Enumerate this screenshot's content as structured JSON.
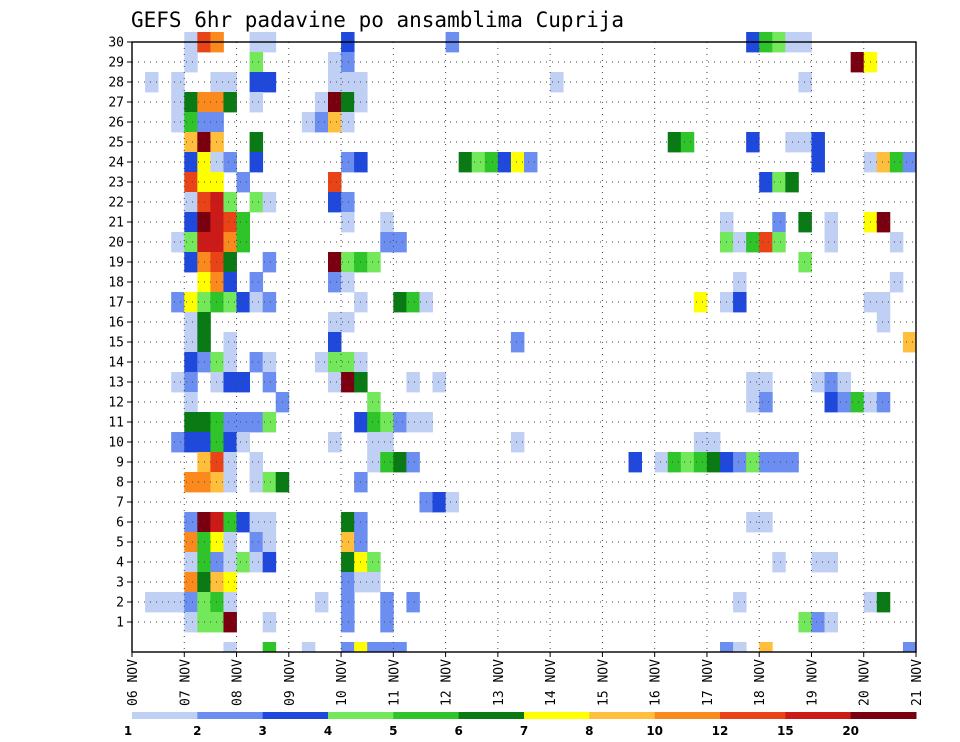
{
  "chart_data": {
    "type": "heatmap",
    "title": "GEFS 6hr padavine po ansamblima Cuprija",
    "xlabel": "",
    "ylabel": "",
    "x_tick_labels": [
      "06 NOV",
      "07 NOV",
      "08 NOV",
      "09 NOV",
      "10 NOV",
      "11 NOV",
      "12 NOV",
      "13 NOV",
      "14 NOV",
      "15 NOV",
      "16 NOV",
      "17 NOV",
      "18 NOV",
      "19 NOV",
      "20 NOV",
      "21 NOV"
    ],
    "y_tick_labels": [
      "1",
      "2",
      "3",
      "4",
      "5",
      "6",
      "7",
      "8",
      "9",
      "10",
      "11",
      "12",
      "13",
      "14",
      "15",
      "16",
      "17",
      "18",
      "19",
      "20",
      "21",
      "22",
      "23",
      "24",
      "25",
      "26",
      "27",
      "28",
      "29",
      "30"
    ],
    "x_range_steps": [
      0,
      60
    ],
    "y_range_members": [
      0,
      30
    ],
    "grid": true,
    "colorbar": {
      "tick_labels": [
        "1",
        "2",
        "3",
        "4",
        "5",
        "6",
        "7",
        "8",
        "10",
        "12",
        "15",
        "20"
      ],
      "colors": [
        "#c0d0f5",
        "#6c8ef0",
        "#1f48dc",
        "#72e85a",
        "#2ec42a",
        "#0a7a14",
        "#ffff00",
        "#ffbe3c",
        "#fb8a1e",
        "#e84418",
        "#cc1a18",
        "#7a0010"
      ]
    },
    "cells": [
      [
        30,
        4,
        0
      ],
      [
        30,
        5,
        9
      ],
      [
        30,
        6,
        8
      ],
      [
        30,
        9,
        0
      ],
      [
        30,
        10,
        0
      ],
      [
        30,
        16,
        2
      ],
      [
        30,
        24,
        1
      ],
      [
        30,
        47,
        2
      ],
      [
        30,
        48,
        4
      ],
      [
        30,
        49,
        3
      ],
      [
        30,
        50,
        0
      ],
      [
        30,
        51,
        0
      ],
      [
        29,
        4,
        0
      ],
      [
        29,
        9,
        3
      ],
      [
        29,
        15,
        0
      ],
      [
        29,
        16,
        1
      ],
      [
        29,
        55,
        11
      ],
      [
        29,
        56,
        6
      ],
      [
        28,
        1,
        0
      ],
      [
        28,
        3,
        0
      ],
      [
        28,
        6,
        0
      ],
      [
        28,
        7,
        0
      ],
      [
        28,
        9,
        2
      ],
      [
        28,
        10,
        2
      ],
      [
        28,
        15,
        0
      ],
      [
        28,
        16,
        0
      ],
      [
        28,
        17,
        0
      ],
      [
        28,
        32,
        0
      ],
      [
        28,
        51,
        0
      ],
      [
        27,
        3,
        0
      ],
      [
        27,
        4,
        5
      ],
      [
        27,
        5,
        8
      ],
      [
        27,
        6,
        8
      ],
      [
        27,
        7,
        5
      ],
      [
        27,
        9,
        0
      ],
      [
        27,
        14,
        0
      ],
      [
        27,
        15,
        11
      ],
      [
        27,
        16,
        5
      ],
      [
        27,
        17,
        0
      ],
      [
        26,
        3,
        0
      ],
      [
        26,
        4,
        4
      ],
      [
        26,
        5,
        1
      ],
      [
        26,
        6,
        1
      ],
      [
        26,
        13,
        0
      ],
      [
        26,
        14,
        1
      ],
      [
        26,
        15,
        7
      ],
      [
        26,
        16,
        0
      ],
      [
        25,
        4,
        7
      ],
      [
        25,
        5,
        11
      ],
      [
        25,
        6,
        7
      ],
      [
        25,
        9,
        5
      ],
      [
        25,
        41,
        5
      ],
      [
        25,
        42,
        4
      ],
      [
        25,
        47,
        2
      ],
      [
        25,
        50,
        0
      ],
      [
        25,
        51,
        0
      ],
      [
        25,
        52,
        2
      ],
      [
        24,
        4,
        2
      ],
      [
        24,
        5,
        6
      ],
      [
        24,
        6,
        0
      ],
      [
        24,
        7,
        1
      ],
      [
        24,
        9,
        2
      ],
      [
        24,
        16,
        1
      ],
      [
        24,
        17,
        2
      ],
      [
        24,
        25,
        5
      ],
      [
        24,
        26,
        3
      ],
      [
        24,
        27,
        4
      ],
      [
        24,
        28,
        2
      ],
      [
        24,
        29,
        6
      ],
      [
        24,
        30,
        1
      ],
      [
        24,
        52,
        2
      ],
      [
        24,
        56,
        0
      ],
      [
        24,
        57,
        7
      ],
      [
        24,
        58,
        4
      ],
      [
        24,
        59,
        1
      ],
      [
        23,
        4,
        9
      ],
      [
        23,
        5,
        6
      ],
      [
        23,
        6,
        6
      ],
      [
        23,
        8,
        1
      ],
      [
        23,
        15,
        9
      ],
      [
        23,
        48,
        2
      ],
      [
        23,
        49,
        3
      ],
      [
        23,
        50,
        5
      ],
      [
        22,
        4,
        0
      ],
      [
        22,
        5,
        9
      ],
      [
        22,
        6,
        10
      ],
      [
        22,
        7,
        3
      ],
      [
        22,
        9,
        3
      ],
      [
        22,
        10,
        0
      ],
      [
        22,
        15,
        2
      ],
      [
        22,
        16,
        1
      ],
      [
        21,
        4,
        2
      ],
      [
        21,
        5,
        11
      ],
      [
        21,
        6,
        10
      ],
      [
        21,
        7,
        9
      ],
      [
        21,
        8,
        4
      ],
      [
        21,
        16,
        0
      ],
      [
        21,
        19,
        0
      ],
      [
        21,
        45,
        0
      ],
      [
        21,
        49,
        1
      ],
      [
        21,
        51,
        5
      ],
      [
        21,
        53,
        0
      ],
      [
        21,
        56,
        6
      ],
      [
        21,
        57,
        11
      ],
      [
        20,
        3,
        0
      ],
      [
        20,
        4,
        3
      ],
      [
        20,
        5,
        10
      ],
      [
        20,
        6,
        10
      ],
      [
        20,
        7,
        8
      ],
      [
        20,
        8,
        4
      ],
      [
        20,
        19,
        1
      ],
      [
        20,
        20,
        1
      ],
      [
        20,
        45,
        3
      ],
      [
        20,
        46,
        0
      ],
      [
        20,
        47,
        4
      ],
      [
        20,
        48,
        9
      ],
      [
        20,
        49,
        3
      ],
      [
        20,
        53,
        0
      ],
      [
        20,
        58,
        0
      ],
      [
        19,
        4,
        2
      ],
      [
        19,
        5,
        8
      ],
      [
        19,
        6,
        9
      ],
      [
        19,
        7,
        5
      ],
      [
        19,
        10,
        1
      ],
      [
        19,
        15,
        11
      ],
      [
        19,
        16,
        3
      ],
      [
        19,
        17,
        4
      ],
      [
        19,
        18,
        3
      ],
      [
        19,
        51,
        3
      ],
      [
        18,
        5,
        6
      ],
      [
        18,
        6,
        8
      ],
      [
        18,
        7,
        2
      ],
      [
        18,
        9,
        1
      ],
      [
        18,
        15,
        1
      ],
      [
        18,
        16,
        0
      ],
      [
        18,
        46,
        0
      ],
      [
        18,
        58,
        0
      ],
      [
        17,
        3,
        1
      ],
      [
        17,
        4,
        6
      ],
      [
        17,
        5,
        3
      ],
      [
        17,
        6,
        4
      ],
      [
        17,
        7,
        3
      ],
      [
        17,
        8,
        2
      ],
      [
        17,
        9,
        0
      ],
      [
        17,
        10,
        1
      ],
      [
        17,
        17,
        0
      ],
      [
        17,
        20,
        5
      ],
      [
        17,
        21,
        4
      ],
      [
        17,
        22,
        0
      ],
      [
        17,
        43,
        6
      ],
      [
        17,
        45,
        0
      ],
      [
        17,
        46,
        2
      ],
      [
        17,
        56,
        0
      ],
      [
        17,
        57,
        0
      ],
      [
        16,
        4,
        0
      ],
      [
        16,
        5,
        5
      ],
      [
        16,
        15,
        0
      ],
      [
        16,
        16,
        0
      ],
      [
        16,
        57,
        0
      ],
      [
        15,
        4,
        0
      ],
      [
        15,
        5,
        5
      ],
      [
        15,
        7,
        0
      ],
      [
        15,
        15,
        2
      ],
      [
        15,
        29,
        1
      ],
      [
        15,
        59,
        7
      ],
      [
        14,
        4,
        2
      ],
      [
        14,
        5,
        1
      ],
      [
        14,
        6,
        3
      ],
      [
        14,
        7,
        0
      ],
      [
        14,
        9,
        1
      ],
      [
        14,
        10,
        0
      ],
      [
        14,
        14,
        0
      ],
      [
        14,
        15,
        3
      ],
      [
        14,
        16,
        3
      ],
      [
        14,
        17,
        0
      ],
      [
        13,
        3,
        0
      ],
      [
        13,
        4,
        1
      ],
      [
        13,
        6,
        0
      ],
      [
        13,
        7,
        2
      ],
      [
        13,
        8,
        2
      ],
      [
        13,
        10,
        1
      ],
      [
        13,
        15,
        0
      ],
      [
        13,
        16,
        11
      ],
      [
        13,
        17,
        5
      ],
      [
        13,
        21,
        0
      ],
      [
        13,
        23,
        0
      ],
      [
        13,
        47,
        0
      ],
      [
        13,
        48,
        0
      ],
      [
        13,
        52,
        0
      ],
      [
        13,
        53,
        1
      ],
      [
        13,
        54,
        0
      ],
      [
        12,
        4,
        0
      ],
      [
        12,
        11,
        1
      ],
      [
        12,
        18,
        3
      ],
      [
        12,
        47,
        0
      ],
      [
        12,
        48,
        1
      ],
      [
        12,
        53,
        2
      ],
      [
        12,
        54,
        1
      ],
      [
        12,
        55,
        4
      ],
      [
        12,
        56,
        0
      ],
      [
        12,
        57,
        1
      ],
      [
        11,
        4,
        5
      ],
      [
        11,
        5,
        5
      ],
      [
        11,
        6,
        4
      ],
      [
        11,
        7,
        1
      ],
      [
        11,
        8,
        1
      ],
      [
        11,
        9,
        1
      ],
      [
        11,
        10,
        3
      ],
      [
        11,
        17,
        2
      ],
      [
        11,
        18,
        4
      ],
      [
        11,
        19,
        3
      ],
      [
        11,
        20,
        1
      ],
      [
        11,
        21,
        0
      ],
      [
        11,
        22,
        0
      ],
      [
        10,
        3,
        1
      ],
      [
        10,
        4,
        2
      ],
      [
        10,
        5,
        2
      ],
      [
        10,
        6,
        4
      ],
      [
        10,
        7,
        2
      ],
      [
        10,
        8,
        0
      ],
      [
        10,
        15,
        0
      ],
      [
        10,
        18,
        0
      ],
      [
        10,
        19,
        0
      ],
      [
        10,
        29,
        0
      ],
      [
        10,
        43,
        0
      ],
      [
        10,
        44,
        0
      ],
      [
        9,
        5,
        7
      ],
      [
        9,
        6,
        9
      ],
      [
        9,
        7,
        0
      ],
      [
        9,
        9,
        0
      ],
      [
        9,
        18,
        0
      ],
      [
        9,
        19,
        4
      ],
      [
        9,
        20,
        5
      ],
      [
        9,
        21,
        1
      ],
      [
        9,
        38,
        2
      ],
      [
        9,
        40,
        0
      ],
      [
        9,
        41,
        4
      ],
      [
        9,
        42,
        3
      ],
      [
        9,
        43,
        4
      ],
      [
        9,
        44,
        5
      ],
      [
        9,
        45,
        2
      ],
      [
        9,
        46,
        1
      ],
      [
        9,
        47,
        3
      ],
      [
        9,
        48,
        1
      ],
      [
        9,
        49,
        1
      ],
      [
        9,
        50,
        1
      ],
      [
        8,
        4,
        8
      ],
      [
        8,
        5,
        8
      ],
      [
        8,
        6,
        7
      ],
      [
        8,
        7,
        0
      ],
      [
        8,
        9,
        0
      ],
      [
        8,
        10,
        3
      ],
      [
        8,
        11,
        5
      ],
      [
        8,
        17,
        1
      ],
      [
        7,
        22,
        1
      ],
      [
        7,
        23,
        2
      ],
      [
        7,
        24,
        0
      ],
      [
        6,
        4,
        1
      ],
      [
        6,
        5,
        11
      ],
      [
        6,
        6,
        10
      ],
      [
        6,
        7,
        4
      ],
      [
        6,
        8,
        2
      ],
      [
        6,
        9,
        0
      ],
      [
        6,
        10,
        0
      ],
      [
        6,
        16,
        5
      ],
      [
        6,
        17,
        1
      ],
      [
        6,
        47,
        0
      ],
      [
        6,
        48,
        0
      ],
      [
        5,
        4,
        8
      ],
      [
        5,
        5,
        4
      ],
      [
        5,
        6,
        6
      ],
      [
        5,
        7,
        0
      ],
      [
        5,
        9,
        1
      ],
      [
        5,
        10,
        0
      ],
      [
        5,
        16,
        7
      ],
      [
        5,
        17,
        1
      ],
      [
        4,
        4,
        0
      ],
      [
        4,
        5,
        4
      ],
      [
        4,
        6,
        1
      ],
      [
        4,
        7,
        0
      ],
      [
        4,
        8,
        3
      ],
      [
        4,
        9,
        0
      ],
      [
        4,
        10,
        2
      ],
      [
        4,
        16,
        5
      ],
      [
        4,
        17,
        6
      ],
      [
        4,
        18,
        3
      ],
      [
        4,
        49,
        0
      ],
      [
        4,
        52,
        0
      ],
      [
        4,
        53,
        0
      ],
      [
        3,
        4,
        8
      ],
      [
        3,
        5,
        5
      ],
      [
        3,
        6,
        7
      ],
      [
        3,
        7,
        6
      ],
      [
        3,
        16,
        1
      ],
      [
        3,
        17,
        0
      ],
      [
        3,
        18,
        0
      ],
      [
        2,
        1,
        0
      ],
      [
        2,
        2,
        0
      ],
      [
        2,
        3,
        0
      ],
      [
        2,
        4,
        1
      ],
      [
        2,
        5,
        3
      ],
      [
        2,
        6,
        4
      ],
      [
        2,
        7,
        0
      ],
      [
        2,
        14,
        0
      ],
      [
        2,
        16,
        1
      ],
      [
        2,
        19,
        1
      ],
      [
        2,
        21,
        1
      ],
      [
        2,
        46,
        0
      ],
      [
        2,
        56,
        0
      ],
      [
        2,
        57,
        5
      ],
      [
        1,
        4,
        0
      ],
      [
        1,
        5,
        3
      ],
      [
        1,
        6,
        3
      ],
      [
        1,
        7,
        11
      ],
      [
        1,
        10,
        0
      ],
      [
        1,
        16,
        1
      ],
      [
        1,
        19,
        1
      ],
      [
        1,
        51,
        3
      ],
      [
        1,
        52,
        1
      ],
      [
        1,
        53,
        0
      ],
      [
        0,
        7,
        0
      ],
      [
        0,
        10,
        4
      ],
      [
        0,
        13,
        0
      ],
      [
        0,
        16,
        1
      ],
      [
        0,
        17,
        6
      ],
      [
        0,
        18,
        1
      ],
      [
        0,
        19,
        1
      ],
      [
        0,
        20,
        1
      ],
      [
        0,
        45,
        1
      ],
      [
        0,
        46,
        0
      ],
      [
        0,
        48,
        7
      ],
      [
        0,
        59,
        1
      ]
    ]
  }
}
